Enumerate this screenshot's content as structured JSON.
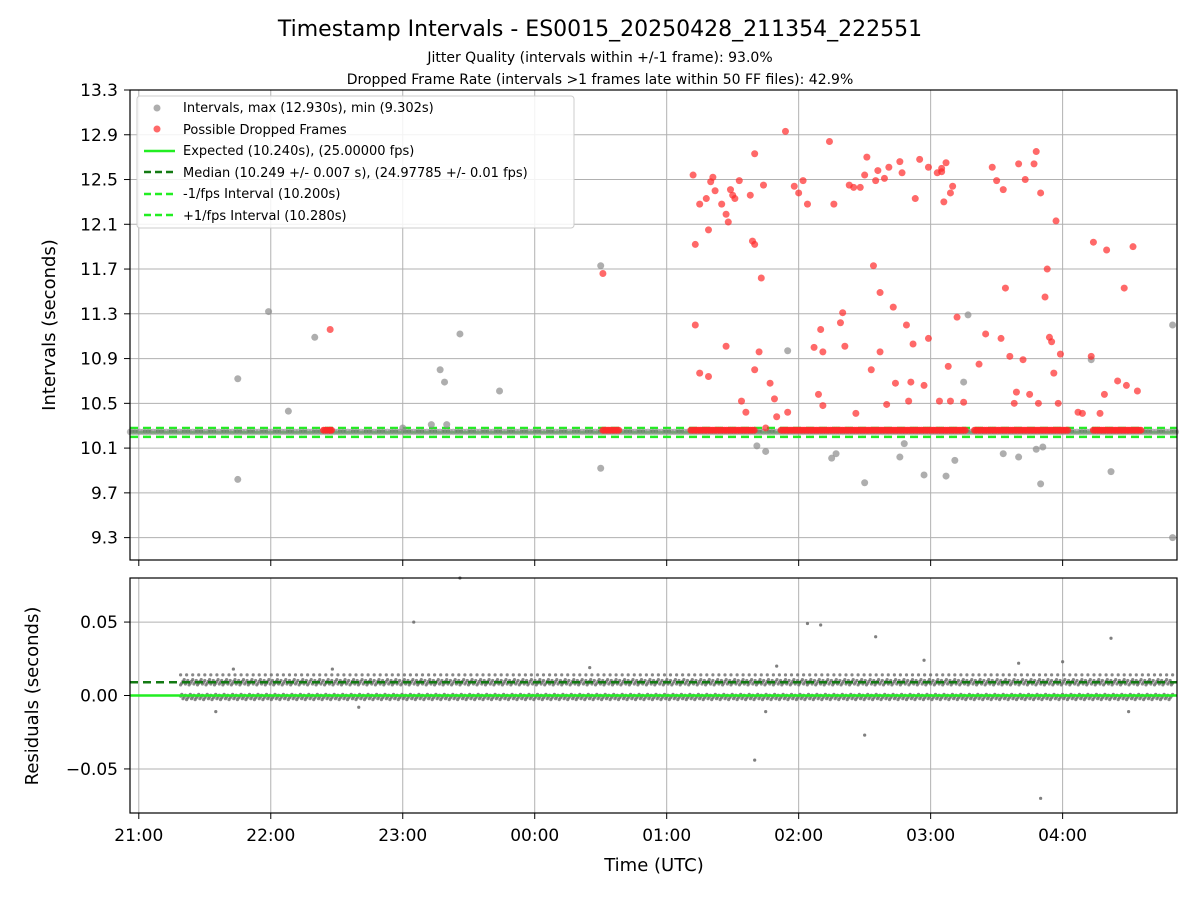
{
  "title": "Timestamp Intervals - ES0015_20250428_211354_222551",
  "subtitle1": "Jitter Quality (intervals within +/-1 frame): 93.0%",
  "subtitle2": "Dropped Frame Rate (intervals >1 frames late within 50 FF files): 42.9%",
  "colors": {
    "intervals": "#8c8c8c",
    "dropped": "#ff2a2a",
    "expected": "#22ee22",
    "median": "#137a13",
    "bounds": "#22ee22",
    "grid": "#b0b0b0"
  },
  "chart_data": [
    {
      "type": "scatter",
      "panel": "top",
      "ylabel": "Intervals (seconds)",
      "xlim": [
        "20:56",
        "04:52"
      ],
      "ylim": [
        9.1,
        13.3
      ],
      "y_ticks": [
        "9.3",
        "9.7",
        "10.1",
        "10.5",
        "10.9",
        "11.3",
        "11.7",
        "12.1",
        "12.5",
        "12.9",
        "13.3"
      ],
      "x_ticks": [
        "21:00",
        "22:00",
        "23:00",
        "00:00",
        "01:00",
        "02:00",
        "03:00",
        "04:00"
      ],
      "grid": true,
      "legend_position": "top-left",
      "legend": [
        "Intervals, max (12.930s), min (9.302s)",
        "Possible Dropped Frames",
        "Expected (10.240s), (25.00000 fps)",
        "Median (10.249 +/- 0.007 s), (24.97785 +/- 0.01 fps)",
        "-1/fps Interval (10.200s)",
        "+1/fps Interval (10.280s)"
      ],
      "expected_line": 10.24,
      "median_line": 10.249,
      "lower_bound_line": 10.2,
      "upper_bound_line": 10.28,
      "baseline_band": {
        "x_start": "20:56",
        "x_end": "04:52",
        "y": 10.245
      },
      "series_intervals": [
        [
          "21:45",
          10.72
        ],
        [
          "21:45",
          9.82
        ],
        [
          "21:59",
          11.32
        ],
        [
          "22:08",
          10.43
        ],
        [
          "22:20",
          11.09
        ],
        [
          "23:17",
          10.8
        ],
        [
          "23:19",
          10.69
        ],
        [
          "23:26",
          11.12
        ],
        [
          "23:44",
          10.61
        ],
        [
          "00:30",
          11.73
        ],
        [
          "00:30",
          9.92
        ],
        [
          "01:55",
          10.97
        ],
        [
          "01:45",
          10.07
        ],
        [
          "01:41",
          10.12
        ],
        [
          "02:15",
          10.01
        ],
        [
          "02:17",
          10.05
        ],
        [
          "02:30",
          9.79
        ],
        [
          "02:46",
          10.02
        ],
        [
          "02:48",
          10.14
        ],
        [
          "02:57",
          9.86
        ],
        [
          "03:07",
          9.85
        ],
        [
          "03:11",
          9.99
        ],
        [
          "03:15",
          10.69
        ],
        [
          "03:17",
          11.29
        ],
        [
          "03:33",
          10.05
        ],
        [
          "03:40",
          10.02
        ],
        [
          "03:48",
          10.09
        ],
        [
          "03:50",
          9.78
        ],
        [
          "03:51",
          10.11
        ],
        [
          "04:13",
          10.89
        ],
        [
          "04:22",
          9.89
        ],
        [
          "04:50",
          9.3
        ],
        [
          "04:50",
          11.2
        ],
        [
          "23:00",
          10.28
        ],
        [
          "23:13",
          10.31
        ],
        [
          "23:20",
          10.31
        ]
      ],
      "series_dropped": [
        [
          "22:27",
          11.16
        ],
        [
          "22:27",
          10.26
        ],
        [
          "00:31",
          11.66
        ],
        [
          "01:12",
          12.54
        ],
        [
          "01:13",
          11.92
        ],
        [
          "01:13",
          11.2
        ],
        [
          "01:15",
          12.28
        ],
        [
          "01:15",
          10.77
        ],
        [
          "01:18",
          12.33
        ],
        [
          "01:19",
          12.05
        ],
        [
          "01:19",
          10.74
        ],
        [
          "01:20",
          12.48
        ],
        [
          "01:21",
          12.52
        ],
        [
          "01:22",
          12.4
        ],
        [
          "01:25",
          12.28
        ],
        [
          "01:27",
          12.19
        ],
        [
          "01:27",
          11.01
        ],
        [
          "01:28",
          12.12
        ],
        [
          "01:29",
          12.41
        ],
        [
          "01:30",
          12.36
        ],
        [
          "01:31",
          12.33
        ],
        [
          "01:33",
          12.49
        ],
        [
          "01:34",
          10.52
        ],
        [
          "01:36",
          10.42
        ],
        [
          "01:38",
          12.36
        ],
        [
          "01:39",
          11.95
        ],
        [
          "01:40",
          11.92
        ],
        [
          "01:40",
          12.73
        ],
        [
          "01:40",
          10.8
        ],
        [
          "01:42",
          10.96
        ],
        [
          "01:43",
          11.62
        ],
        [
          "01:44",
          12.45
        ],
        [
          "01:45",
          10.28
        ],
        [
          "01:47",
          10.68
        ],
        [
          "01:49",
          10.54
        ],
        [
          "01:50",
          10.38
        ],
        [
          "01:54",
          12.93
        ],
        [
          "01:55",
          10.42
        ],
        [
          "01:58",
          12.44
        ],
        [
          "02:00",
          12.38
        ],
        [
          "02:02",
          12.49
        ],
        [
          "02:04",
          12.28
        ],
        [
          "02:07",
          11.0
        ],
        [
          "02:09",
          10.58
        ],
        [
          "02:10",
          11.16
        ],
        [
          "02:11",
          10.96
        ],
        [
          "02:11",
          10.48
        ],
        [
          "02:14",
          12.84
        ],
        [
          "02:16",
          12.28
        ],
        [
          "02:19",
          11.22
        ],
        [
          "02:20",
          11.31
        ],
        [
          "02:21",
          11.01
        ],
        [
          "02:23",
          12.45
        ],
        [
          "02:25",
          12.43
        ],
        [
          "02:26",
          10.41
        ],
        [
          "02:28",
          12.43
        ],
        [
          "02:30",
          12.54
        ],
        [
          "02:31",
          12.7
        ],
        [
          "02:33",
          10.8
        ],
        [
          "02:34",
          11.73
        ],
        [
          "02:35",
          12.49
        ],
        [
          "02:36",
          12.58
        ],
        [
          "02:37",
          10.96
        ],
        [
          "02:37",
          11.49
        ],
        [
          "02:39",
          12.51
        ],
        [
          "02:40",
          10.49
        ],
        [
          "02:41",
          12.61
        ],
        [
          "02:43",
          11.36
        ],
        [
          "02:44",
          10.68
        ],
        [
          "02:46",
          12.66
        ],
        [
          "02:47",
          12.56
        ],
        [
          "02:49",
          11.2
        ],
        [
          "02:50",
          10.52
        ],
        [
          "02:51",
          10.69
        ],
        [
          "02:52",
          11.03
        ],
        [
          "02:53",
          12.33
        ],
        [
          "02:55",
          12.68
        ],
        [
          "02:57",
          10.66
        ],
        [
          "02:59",
          11.08
        ],
        [
          "02:59",
          12.61
        ],
        [
          "03:03",
          12.56
        ],
        [
          "03:04",
          10.52
        ],
        [
          "03:05",
          12.57
        ],
        [
          "03:05",
          12.6
        ],
        [
          "03:06",
          12.3
        ],
        [
          "03:07",
          12.65
        ],
        [
          "03:08",
          10.83
        ],
        [
          "03:09",
          10.52
        ],
        [
          "03:09",
          12.38
        ],
        [
          "03:10",
          12.44
        ],
        [
          "03:12",
          11.27
        ],
        [
          "03:15",
          10.51
        ],
        [
          "03:22",
          10.85
        ],
        [
          "03:25",
          11.12
        ],
        [
          "03:28",
          12.61
        ],
        [
          "03:30",
          12.49
        ],
        [
          "03:32",
          11.08
        ],
        [
          "03:33",
          12.41
        ],
        [
          "03:34",
          11.53
        ],
        [
          "03:36",
          10.92
        ],
        [
          "03:38",
          10.5
        ],
        [
          "03:39",
          10.6
        ],
        [
          "03:40",
          12.64
        ],
        [
          "03:42",
          10.89
        ],
        [
          "03:43",
          12.5
        ],
        [
          "03:45",
          10.58
        ],
        [
          "03:47",
          12.64
        ],
        [
          "03:48",
          12.75
        ],
        [
          "03:49",
          10.5
        ],
        [
          "03:50",
          12.38
        ],
        [
          "03:52",
          11.45
        ],
        [
          "03:53",
          11.7
        ],
        [
          "03:54",
          11.09
        ],
        [
          "03:55",
          11.05
        ],
        [
          "03:56",
          10.77
        ],
        [
          "03:57",
          12.13
        ],
        [
          "03:58",
          10.5
        ],
        [
          "03:59",
          10.94
        ],
        [
          "04:07",
          10.42
        ],
        [
          "04:09",
          10.41
        ],
        [
          "04:13",
          10.92
        ],
        [
          "04:14",
          11.94
        ],
        [
          "04:17",
          10.41
        ],
        [
          "04:19",
          10.58
        ],
        [
          "04:20",
          11.87
        ],
        [
          "04:25",
          10.7
        ],
        [
          "04:28",
          11.53
        ],
        [
          "04:29",
          10.66
        ],
        [
          "04:32",
          11.9
        ],
        [
          "04:34",
          10.61
        ]
      ],
      "dense_dropped_ranges": [
        [
          "22:24",
          "22:28"
        ],
        [
          "00:31",
          "00:39"
        ],
        [
          "01:11",
          "01:40"
        ],
        [
          "01:52",
          "03:16"
        ],
        [
          "03:20",
          "04:03"
        ],
        [
          "04:14",
          "04:36"
        ]
      ]
    },
    {
      "type": "scatter",
      "panel": "bottom",
      "xlabel": "Time (UTC)",
      "ylabel": "Residuals (seconds)",
      "xlim": [
        "20:56",
        "04:52"
      ],
      "ylim": [
        -0.08,
        0.08
      ],
      "y_ticks": [
        "−0.05",
        "0.00",
        "0.05"
      ],
      "y_tick_values": [
        -0.05,
        0.0,
        0.05
      ],
      "x_ticks": [
        "21:00",
        "22:00",
        "23:00",
        "00:00",
        "01:00",
        "02:00",
        "03:00",
        "04:00"
      ],
      "grid": true,
      "zero_line": 0.0,
      "median_offset_line": 0.009,
      "data_start": "21:19",
      "data_end": "04:50",
      "residual_bands": [
        0.009,
        -0.001
      ],
      "outliers": [
        [
          "23:26",
          0.08
        ],
        [
          "23:05",
          0.05
        ],
        [
          "02:04",
          0.049
        ],
        [
          "02:10",
          0.048
        ],
        [
          "02:35",
          0.04
        ],
        [
          "04:22",
          0.039
        ],
        [
          "02:30",
          -0.027
        ],
        [
          "01:40",
          -0.044
        ],
        [
          "03:50",
          -0.07
        ],
        [
          "21:35",
          -0.011
        ],
        [
          "22:40",
          -0.008
        ],
        [
          "01:45",
          -0.011
        ],
        [
          "04:30",
          -0.011
        ],
        [
          "02:57",
          0.024
        ],
        [
          "03:40",
          0.022
        ],
        [
          "04:00",
          0.023
        ],
        [
          "21:43",
          0.018
        ],
        [
          "22:28",
          0.018
        ],
        [
          "00:25",
          0.019
        ],
        [
          "01:50",
          0.02
        ]
      ]
    }
  ]
}
